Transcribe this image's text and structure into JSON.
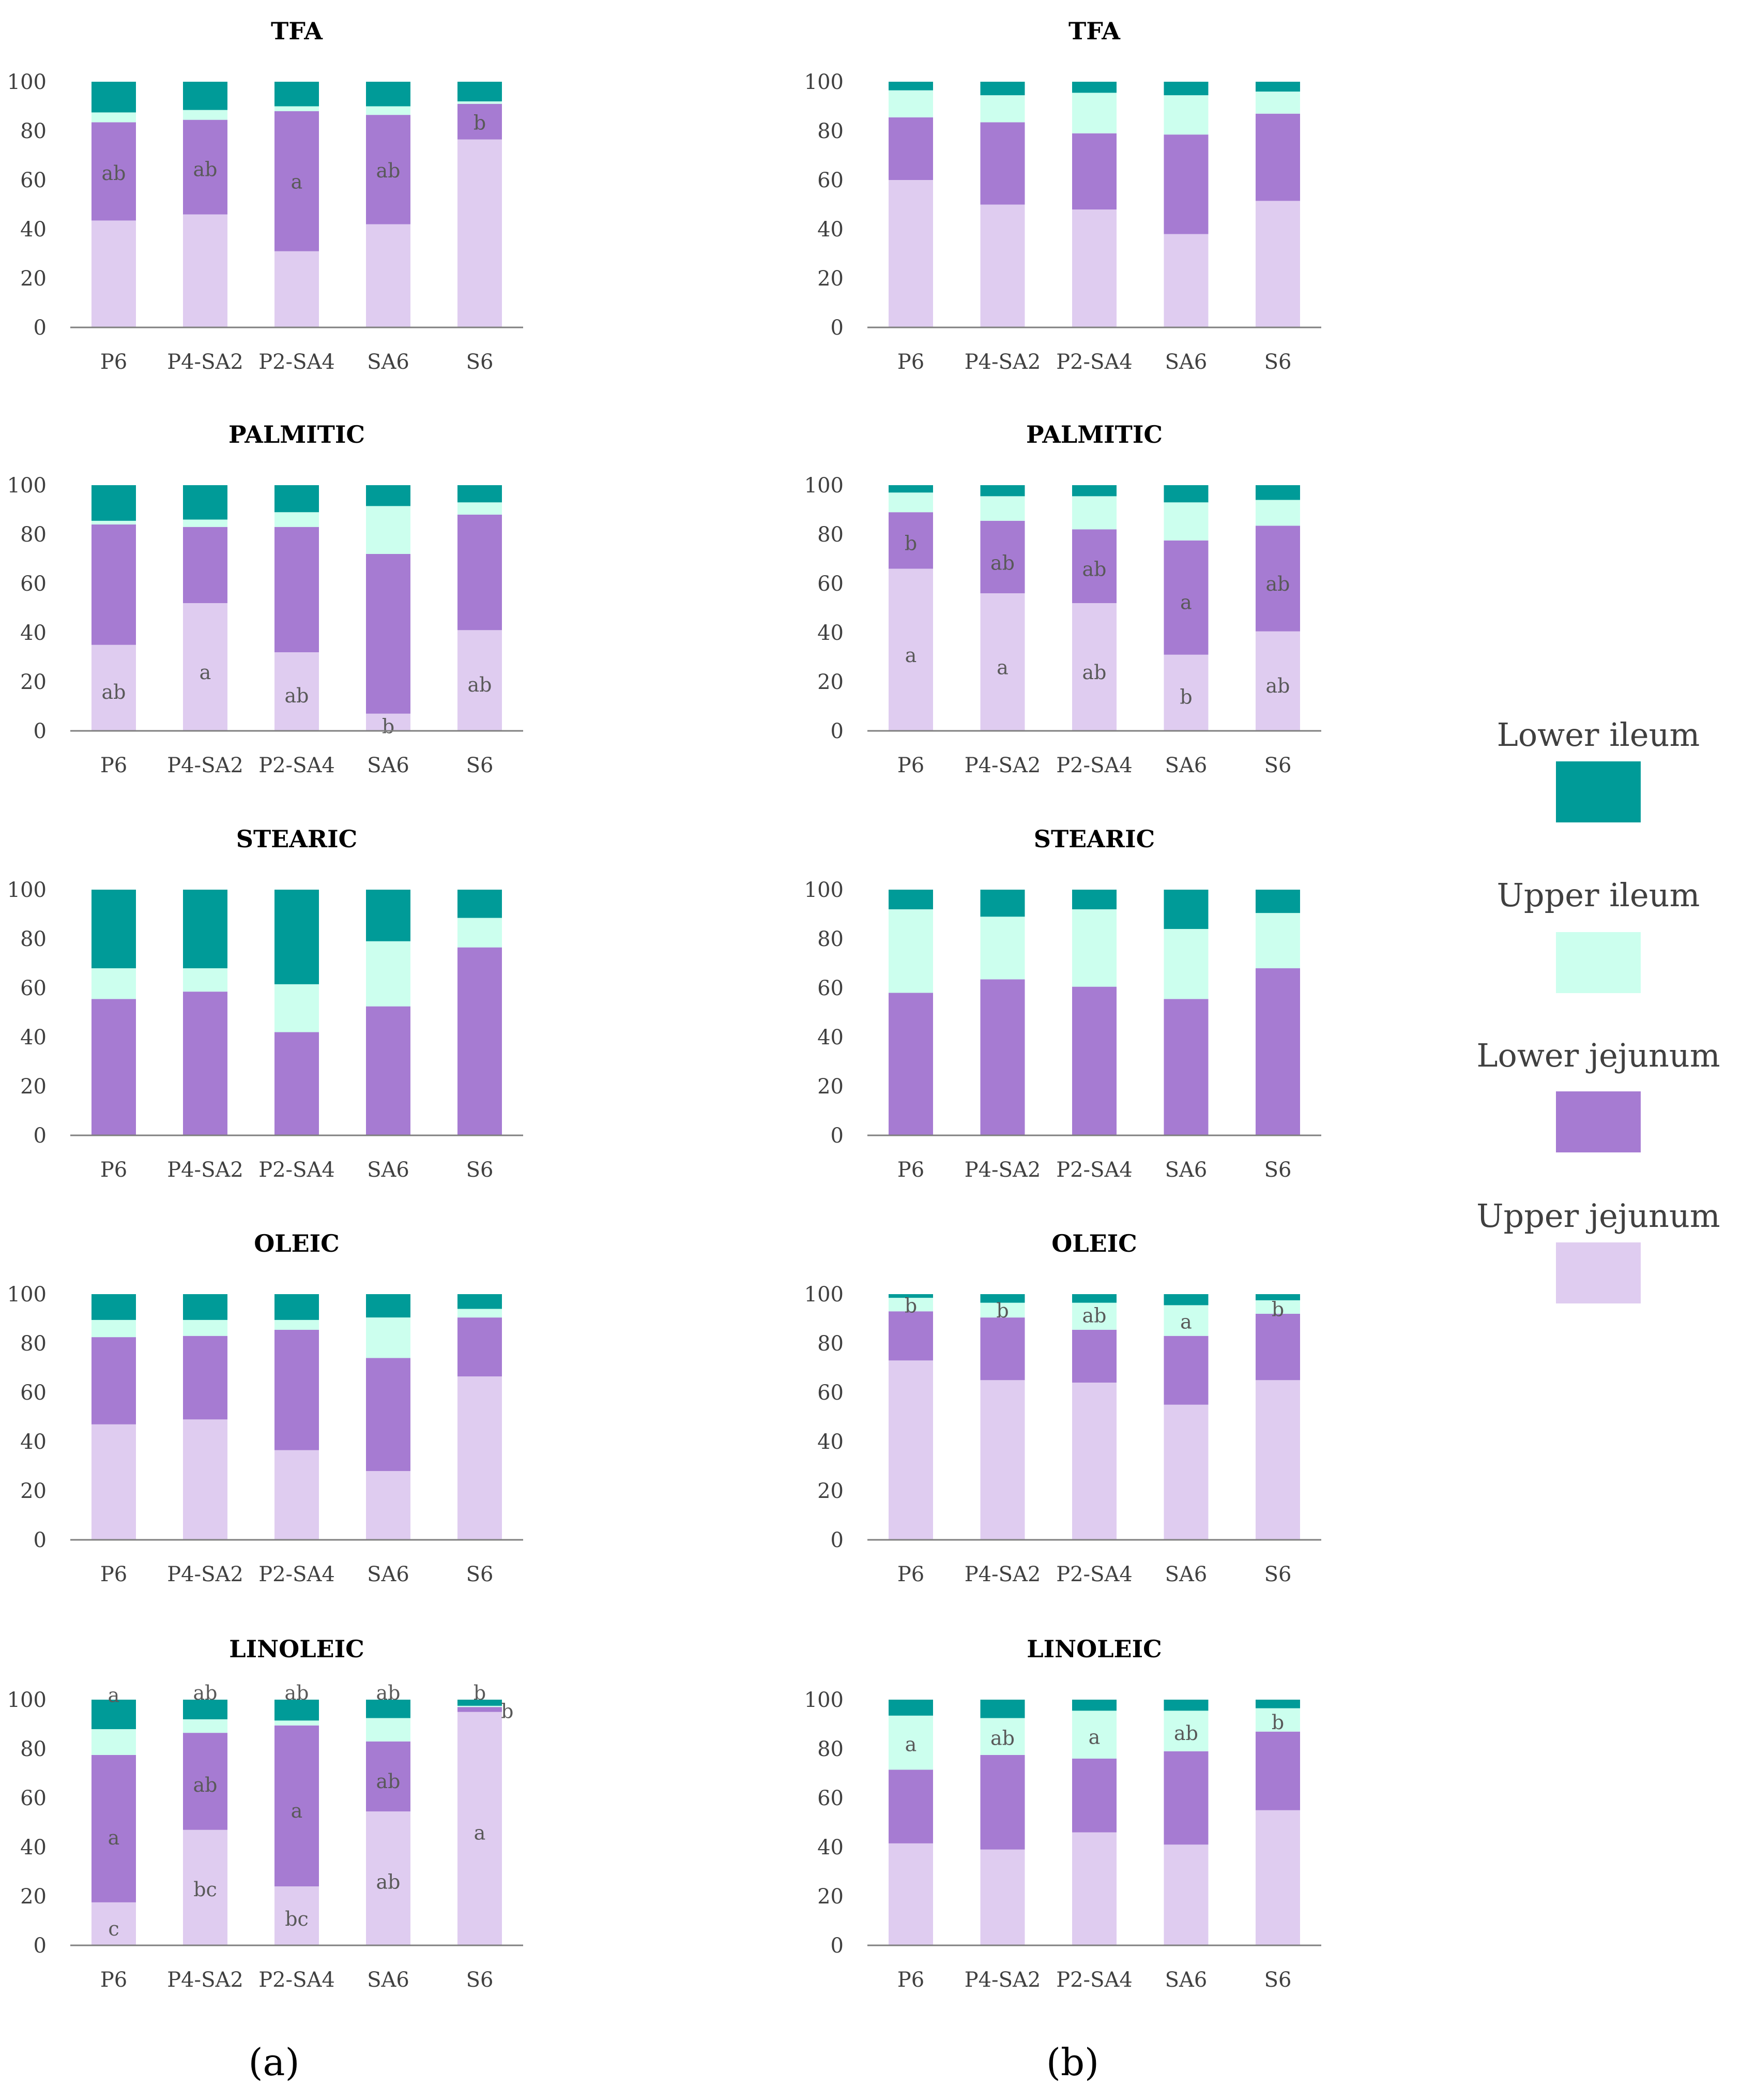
{
  "colors": {
    "lower_ileum": "#009B98",
    "upper_ileum": "#CCFFEE",
    "lower_jejunum": "#A67BD2",
    "upper_jejunum": "#DFCCF0",
    "axis": "#7F7F7F",
    "text": "#404040",
    "label": "#595959"
  },
  "legend": {
    "items": [
      {
        "key": "lower_ileum",
        "label": "Lower ileum"
      },
      {
        "key": "upper_ileum",
        "label": "Upper ileum"
      },
      {
        "key": "lower_jejunum",
        "label": "Lower jejunum"
      },
      {
        "key": "upper_jejunum",
        "label": "Upper jejunum"
      }
    ]
  },
  "panel_labels": {
    "a": "(a)",
    "b": "(b)"
  },
  "chart_data": [
    {
      "id": "a-tfa",
      "column": "a",
      "row": 0,
      "type": "bar",
      "title": "TFA",
      "categories": [
        "P6",
        "P4-SA2",
        "P2-SA4",
        "SA6",
        "S6"
      ],
      "yticks": [
        "0",
        "20",
        "40",
        "60",
        "80",
        "100"
      ],
      "ylim": [
        0,
        100
      ],
      "series": [
        {
          "name": "Upper jejunum",
          "key": "upper_jejunum",
          "values": [
            43.5,
            46,
            31,
            42,
            76.5
          ]
        },
        {
          "name": "Lower jejunum",
          "key": "lower_jejunum",
          "values": [
            40,
            38.5,
            57,
            44.5,
            14.5
          ]
        },
        {
          "name": "Upper ileum",
          "key": "upper_ileum",
          "values": [
            4,
            4,
            2,
            3.5,
            1
          ]
        },
        {
          "name": "Lower ileum",
          "key": "lower_ileum",
          "values": [
            12.5,
            11.5,
            10,
            10,
            8
          ]
        }
      ],
      "annotations": [
        {
          "cat": 0,
          "y": 63,
          "text": "ab"
        },
        {
          "cat": 1,
          "y": 64.5,
          "text": "ab"
        },
        {
          "cat": 2,
          "y": 59.5,
          "text": "a"
        },
        {
          "cat": 3,
          "y": 64,
          "text": "ab"
        },
        {
          "cat": 4,
          "y": 83.5,
          "text": "b"
        }
      ]
    },
    {
      "id": "a-palmitic",
      "column": "a",
      "row": 1,
      "type": "bar",
      "title": "PALMITIC",
      "categories": [
        "P6",
        "P4-SA2",
        "P2-SA4",
        "SA6",
        "S6"
      ],
      "yticks": [
        "0",
        "20",
        "40",
        "60",
        "80",
        "100"
      ],
      "ylim": [
        0,
        100
      ],
      "series": [
        {
          "name": "Upper jejunum",
          "key": "upper_jejunum",
          "values": [
            35,
            52,
            32,
            7,
            41
          ]
        },
        {
          "name": "Lower jejunum",
          "key": "lower_jejunum",
          "values": [
            49,
            31,
            51,
            65,
            47
          ]
        },
        {
          "name": "Upper ileum",
          "key": "upper_ileum",
          "values": [
            1.5,
            3,
            6,
            19.5,
            5
          ]
        },
        {
          "name": "Lower ileum",
          "key": "lower_ileum",
          "values": [
            14.5,
            14,
            11,
            8.5,
            7
          ]
        }
      ],
      "annotations": [
        {
          "cat": 0,
          "y": 16,
          "text": "ab"
        },
        {
          "cat": 1,
          "y": 24,
          "text": "a"
        },
        {
          "cat": 2,
          "y": 14.5,
          "text": "ab"
        },
        {
          "cat": 3,
          "y": 2,
          "text": "b"
        },
        {
          "cat": 4,
          "y": 19,
          "text": "ab"
        }
      ]
    },
    {
      "id": "a-stearic",
      "column": "a",
      "row": 2,
      "type": "bar",
      "title": "STEARIC",
      "categories": [
        "P6",
        "P4-SA2",
        "P2-SA4",
        "SA6",
        "S6"
      ],
      "yticks": [
        "0",
        "20",
        "40",
        "60",
        "80",
        "100"
      ],
      "ylim": [
        0,
        100
      ],
      "series": [
        {
          "name": "Upper jejunum",
          "key": "upper_jejunum",
          "values": [
            0,
            0,
            0,
            0,
            0
          ]
        },
        {
          "name": "Lower jejunum",
          "key": "lower_jejunum",
          "values": [
            55.5,
            58.5,
            42,
            52.5,
            76.5
          ]
        },
        {
          "name": "Upper ileum",
          "key": "upper_ileum",
          "values": [
            12.5,
            9.5,
            19.5,
            26.5,
            12
          ]
        },
        {
          "name": "Lower ileum",
          "key": "lower_ileum",
          "values": [
            32,
            32,
            38.5,
            21,
            11.5
          ]
        }
      ],
      "annotations": []
    },
    {
      "id": "a-oleic",
      "column": "a",
      "row": 3,
      "type": "bar",
      "title": "OLEIC",
      "categories": [
        "P6",
        "P4-SA2",
        "P2-SA4",
        "SA6",
        "S6"
      ],
      "yticks": [
        "0",
        "20",
        "40",
        "60",
        "80",
        "100"
      ],
      "ylim": [
        0,
        100
      ],
      "series": [
        {
          "name": "Upper jejunum",
          "key": "upper_jejunum",
          "values": [
            47,
            49,
            36.5,
            28,
            66.5
          ]
        },
        {
          "name": "Lower jejunum",
          "key": "lower_jejunum",
          "values": [
            35.5,
            34,
            49,
            46,
            24
          ]
        },
        {
          "name": "Upper ileum",
          "key": "upper_ileum",
          "values": [
            7,
            6.5,
            4,
            16.5,
            3.5
          ]
        },
        {
          "name": "Lower ileum",
          "key": "lower_ileum",
          "values": [
            10.5,
            10.5,
            10.5,
            9.5,
            6
          ]
        }
      ],
      "annotations": []
    },
    {
      "id": "a-linoleic",
      "column": "a",
      "row": 4,
      "type": "bar",
      "title": "LINOLEIC",
      "categories": [
        "P6",
        "P4-SA2",
        "P2-SA4",
        "SA6",
        "S6"
      ],
      "yticks": [
        "0",
        "20",
        "40",
        "60",
        "80",
        "100"
      ],
      "ylim": [
        0,
        100
      ],
      "series": [
        {
          "name": "Upper jejunum",
          "key": "upper_jejunum",
          "values": [
            17.5,
            47,
            24,
            54.5,
            95
          ]
        },
        {
          "name": "Lower jejunum",
          "key": "lower_jejunum",
          "values": [
            60,
            39.5,
            65.5,
            28.5,
            2
          ]
        },
        {
          "name": "Upper ileum",
          "key": "upper_ileum",
          "values": [
            10.5,
            5.5,
            2,
            9.5,
            0.5
          ]
        },
        {
          "name": "Lower ileum",
          "key": "lower_ileum",
          "values": [
            12,
            8,
            8.5,
            7.5,
            2.5
          ]
        }
      ],
      "annotations": [
        {
          "cat": 0,
          "y": 44,
          "text": "a"
        },
        {
          "cat": 0,
          "y": 7,
          "text": "c"
        },
        {
          "cat": 0,
          "y": 102,
          "text": "a"
        },
        {
          "cat": 1,
          "y": 65.5,
          "text": "ab"
        },
        {
          "cat": 1,
          "y": 23,
          "text": "bc"
        },
        {
          "cat": 1,
          "y": 103,
          "text": "ab"
        },
        {
          "cat": 2,
          "y": 55,
          "text": "a"
        },
        {
          "cat": 2,
          "y": 11,
          "text": "bc"
        },
        {
          "cat": 2,
          "y": 103,
          "text": "ab"
        },
        {
          "cat": 3,
          "y": 67,
          "text": "ab"
        },
        {
          "cat": 3,
          "y": 26,
          "text": "ab"
        },
        {
          "cat": 3,
          "y": 103,
          "text": "ab"
        },
        {
          "cat": 4,
          "y": 46,
          "text": "a"
        },
        {
          "cat": 4,
          "y": 103,
          "text": "b"
        },
        {
          "cat": 4,
          "y": 95.5,
          "text": "b",
          "dx": 0.62
        }
      ]
    },
    {
      "id": "b-tfa",
      "column": "b",
      "row": 0,
      "type": "bar",
      "title": "TFA",
      "categories": [
        "P6",
        "P4-SA2",
        "P2-SA4",
        "SA6",
        "S6"
      ],
      "yticks": [
        "0",
        "20",
        "40",
        "60",
        "80",
        "100"
      ],
      "ylim": [
        0,
        100
      ],
      "series": [
        {
          "name": "Upper jejunum",
          "key": "upper_jejunum",
          "values": [
            60,
            50,
            48,
            38,
            51.5
          ]
        },
        {
          "name": "Lower jejunum",
          "key": "lower_jejunum",
          "values": [
            25.5,
            33.5,
            31,
            40.5,
            35.5
          ]
        },
        {
          "name": "Upper ileum",
          "key": "upper_ileum",
          "values": [
            11,
            11,
            16.5,
            16,
            9
          ]
        },
        {
          "name": "Lower ileum",
          "key": "lower_ileum",
          "values": [
            3.5,
            5.5,
            4.5,
            5.5,
            4
          ]
        }
      ],
      "annotations": []
    },
    {
      "id": "b-palmitic",
      "column": "b",
      "row": 1,
      "type": "bar",
      "title": "PALMITIC",
      "categories": [
        "P6",
        "P4-SA2",
        "P2-SA4",
        "SA6",
        "S6"
      ],
      "yticks": [
        "0",
        "20",
        "40",
        "60",
        "80",
        "100"
      ],
      "ylim": [
        0,
        100
      ],
      "series": [
        {
          "name": "Upper jejunum",
          "key": "upper_jejunum",
          "values": [
            66,
            56,
            52,
            31,
            40.5
          ]
        },
        {
          "name": "Lower jejunum",
          "key": "lower_jejunum",
          "values": [
            23,
            29.5,
            30,
            46.5,
            43
          ]
        },
        {
          "name": "Upper ileum",
          "key": "upper_ileum",
          "values": [
            8,
            10,
            13.5,
            15.5,
            10.5
          ]
        },
        {
          "name": "Lower ileum",
          "key": "lower_ileum",
          "values": [
            3,
            4.5,
            4.5,
            7,
            6
          ]
        }
      ],
      "annotations": [
        {
          "cat": 0,
          "y": 76.5,
          "text": "b"
        },
        {
          "cat": 0,
          "y": 31,
          "text": "a"
        },
        {
          "cat": 1,
          "y": 68.5,
          "text": "ab"
        },
        {
          "cat": 1,
          "y": 26,
          "text": "a"
        },
        {
          "cat": 2,
          "y": 66,
          "text": "ab"
        },
        {
          "cat": 2,
          "y": 24,
          "text": "ab"
        },
        {
          "cat": 3,
          "y": 52.5,
          "text": "a"
        },
        {
          "cat": 3,
          "y": 14,
          "text": "b"
        },
        {
          "cat": 4,
          "y": 60,
          "text": "ab"
        },
        {
          "cat": 4,
          "y": 18.5,
          "text": "ab"
        }
      ]
    },
    {
      "id": "b-stearic",
      "column": "b",
      "row": 2,
      "type": "bar",
      "title": "STEARIC",
      "categories": [
        "P6",
        "P4-SA2",
        "P2-SA4",
        "SA6",
        "S6"
      ],
      "yticks": [
        "0",
        "20",
        "40",
        "60",
        "80",
        "100"
      ],
      "ylim": [
        0,
        100
      ],
      "series": [
        {
          "name": "Upper jejunum",
          "key": "upper_jejunum",
          "values": [
            0,
            0,
            0,
            0,
            0
          ]
        },
        {
          "name": "Lower jejunum",
          "key": "lower_jejunum",
          "values": [
            58,
            63.5,
            60.5,
            55.5,
            68
          ]
        },
        {
          "name": "Upper ileum",
          "key": "upper_ileum",
          "values": [
            34,
            25.5,
            31.5,
            28.5,
            22.5
          ]
        },
        {
          "name": "Lower ileum",
          "key": "lower_ileum",
          "values": [
            8,
            11,
            8,
            16,
            9.5
          ]
        }
      ],
      "annotations": []
    },
    {
      "id": "b-oleic",
      "column": "b",
      "row": 3,
      "type": "bar",
      "title": "OLEIC",
      "categories": [
        "P6",
        "P4-SA2",
        "P2-SA4",
        "SA6",
        "S6"
      ],
      "yticks": [
        "0",
        "20",
        "40",
        "60",
        "80",
        "100"
      ],
      "ylim": [
        0,
        100
      ],
      "series": [
        {
          "name": "Upper jejunum",
          "key": "upper_jejunum",
          "values": [
            73,
            65,
            64,
            55,
            65
          ]
        },
        {
          "name": "Lower jejunum",
          "key": "lower_jejunum",
          "values": [
            20,
            25.5,
            21.5,
            28,
            27
          ]
        },
        {
          "name": "Upper ileum",
          "key": "upper_ileum",
          "values": [
            5.5,
            6,
            11,
            12.5,
            5.5
          ]
        },
        {
          "name": "Lower ileum",
          "key": "lower_ileum",
          "values": [
            1.5,
            3.5,
            3.5,
            4.5,
            2.5
          ]
        }
      ],
      "annotations": [
        {
          "cat": 0,
          "y": 95.5,
          "text": "b"
        },
        {
          "cat": 1,
          "y": 93.5,
          "text": "b"
        },
        {
          "cat": 2,
          "y": 91.5,
          "text": "ab"
        },
        {
          "cat": 3,
          "y": 89,
          "text": "a"
        },
        {
          "cat": 4,
          "y": 94,
          "text": "b"
        }
      ]
    },
    {
      "id": "b-linoleic",
      "column": "b",
      "row": 4,
      "type": "bar",
      "title": "LINOLEIC",
      "categories": [
        "P6",
        "P4-SA2",
        "P2-SA4",
        "SA6",
        "S6"
      ],
      "yticks": [
        "0",
        "20",
        "40",
        "60",
        "80",
        "100"
      ],
      "ylim": [
        0,
        100
      ],
      "series": [
        {
          "name": "Upper jejunum",
          "key": "upper_jejunum",
          "values": [
            41.5,
            39,
            46,
            41,
            55
          ]
        },
        {
          "name": "Lower jejunum",
          "key": "lower_jejunum",
          "values": [
            30,
            38.5,
            30,
            38,
            32
          ]
        },
        {
          "name": "Upper ileum",
          "key": "upper_ileum",
          "values": [
            22,
            15,
            19.5,
            16.5,
            9.5
          ]
        },
        {
          "name": "Lower ileum",
          "key": "lower_ileum",
          "values": [
            6.5,
            7.5,
            4.5,
            4.5,
            3.5
          ]
        }
      ],
      "annotations": [
        {
          "cat": 0,
          "y": 82,
          "text": "a"
        },
        {
          "cat": 1,
          "y": 84.5,
          "text": "ab"
        },
        {
          "cat": 2,
          "y": 85,
          "text": "a"
        },
        {
          "cat": 3,
          "y": 86.5,
          "text": "ab"
        },
        {
          "cat": 4,
          "y": 91,
          "text": "b"
        }
      ]
    }
  ]
}
